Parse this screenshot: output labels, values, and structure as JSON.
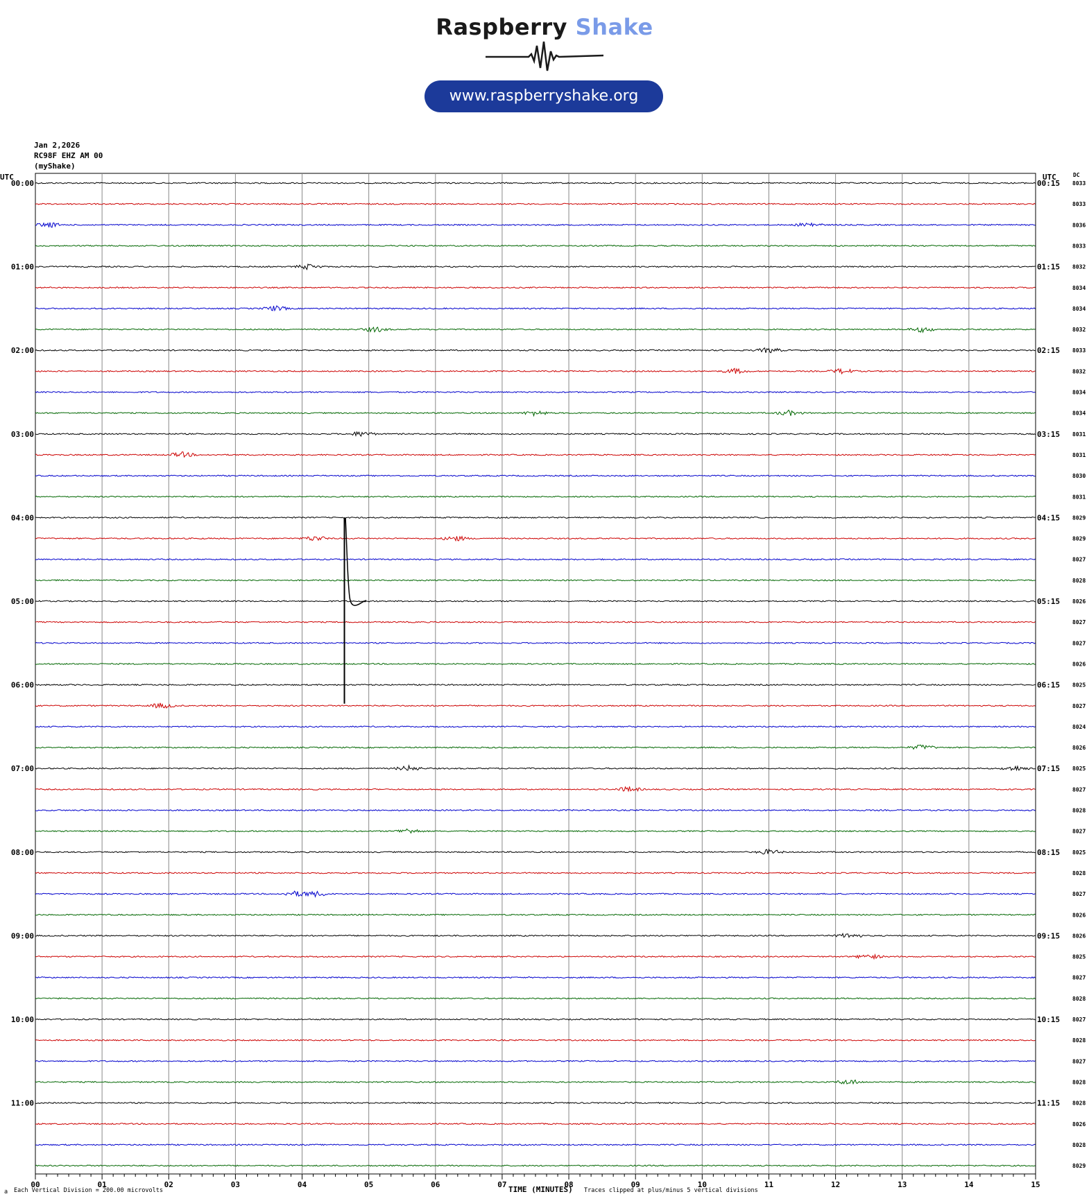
{
  "brand": {
    "title_part1": "Raspberry",
    "title_part2": "Shake",
    "url": "www.raspberryshake.org",
    "accent_color": "#7a9be8",
    "pill_color": "#1c3a9a"
  },
  "header": {
    "date": "Jan 2,2026",
    "station": "RC98F EHZ AM 00",
    "network": "(myShake)"
  },
  "axis": {
    "left_unit": "UTC",
    "right_unit": "UTC",
    "dc_label": "DC",
    "xlabel": "TIME (MINUTES)"
  },
  "footer": {
    "scale_note": "Each Vertical Division =  200.00 microvolts",
    "clip_note": "Traces clipped at plus/minus 5 vertical divisions",
    "corner_mark": "a"
  },
  "colors": [
    "#000000",
    "#cc0000",
    "#0000cc",
    "#006600"
  ],
  "chart_data": {
    "type": "line",
    "title": "",
    "minutes_per_line": 15,
    "xlim": [
      0,
      15
    ],
    "x_tick_labels": [
      "00",
      "01",
      "02",
      "03",
      "04",
      "05",
      "06",
      "07",
      "08",
      "09",
      "10",
      "11",
      "12",
      "13",
      "14",
      "15"
    ],
    "left_labels": [
      "00:00",
      "01:00",
      "02:00",
      "03:00",
      "04:00",
      "05:00",
      "06:00",
      "07:00",
      "08:00",
      "09:00",
      "10:00",
      "11:00"
    ],
    "right_labels": [
      "00:15",
      "01:15",
      "02:15",
      "03:15",
      "04:15",
      "05:15",
      "06:15",
      "07:15",
      "08:15",
      "09:15",
      "10:15",
      "11:15"
    ],
    "dc_offsets": [
      "8033",
      "8033",
      "8036",
      "8033",
      "8032",
      "8034",
      "8034",
      "8032",
      "8033",
      "8032",
      "8034",
      "8034",
      "8031",
      "8031",
      "8030",
      "8031",
      "8029",
      "8029",
      "8027",
      "8028",
      "8026",
      "8027",
      "8027",
      "8026",
      "8025",
      "8027",
      "8024",
      "8026",
      "8025",
      "8027",
      "8028",
      "8027",
      "8025",
      "8028",
      "8027",
      "8026",
      "8026",
      "8025",
      "8027",
      "8028",
      "8027",
      "8028",
      "8027",
      "8028",
      "8028",
      "8026",
      "8028",
      "8029"
    ],
    "event": {
      "trace_index": 16,
      "minute": 4.65,
      "spike_end_trace": 24.9,
      "settle_minute": 4.9,
      "settle_trace": 20
    },
    "bursts": [
      {
        "trace": 2,
        "minute": 0.2
      },
      {
        "trace": 2,
        "minute": 11.6
      },
      {
        "trace": 4,
        "minute": 4.1
      },
      {
        "trace": 6,
        "minute": 3.6
      },
      {
        "trace": 7,
        "minute": 5.1
      },
      {
        "trace": 7,
        "minute": 13.3
      },
      {
        "trace": 8,
        "minute": 11.0
      },
      {
        "trace": 9,
        "minute": 10.5
      },
      {
        "trace": 9,
        "minute": 12.1
      },
      {
        "trace": 11,
        "minute": 7.5
      },
      {
        "trace": 11,
        "minute": 11.3
      },
      {
        "trace": 12,
        "minute": 4.9
      },
      {
        "trace": 13,
        "minute": 2.2
      },
      {
        "trace": 17,
        "minute": 4.2
      },
      {
        "trace": 17,
        "minute": 6.3
      },
      {
        "trace": 25,
        "minute": 1.9
      },
      {
        "trace": 27,
        "minute": 13.3
      },
      {
        "trace": 28,
        "minute": 5.6
      },
      {
        "trace": 28,
        "minute": 14.7
      },
      {
        "trace": 29,
        "minute": 8.9
      },
      {
        "trace": 31,
        "minute": 5.6
      },
      {
        "trace": 32,
        "minute": 11.0
      },
      {
        "trace": 34,
        "minute": 3.9
      },
      {
        "trace": 34,
        "minute": 4.2
      },
      {
        "trace": 36,
        "minute": 12.2
      },
      {
        "trace": 37,
        "minute": 12.5
      },
      {
        "trace": 43,
        "minute": 12.2
      }
    ]
  }
}
